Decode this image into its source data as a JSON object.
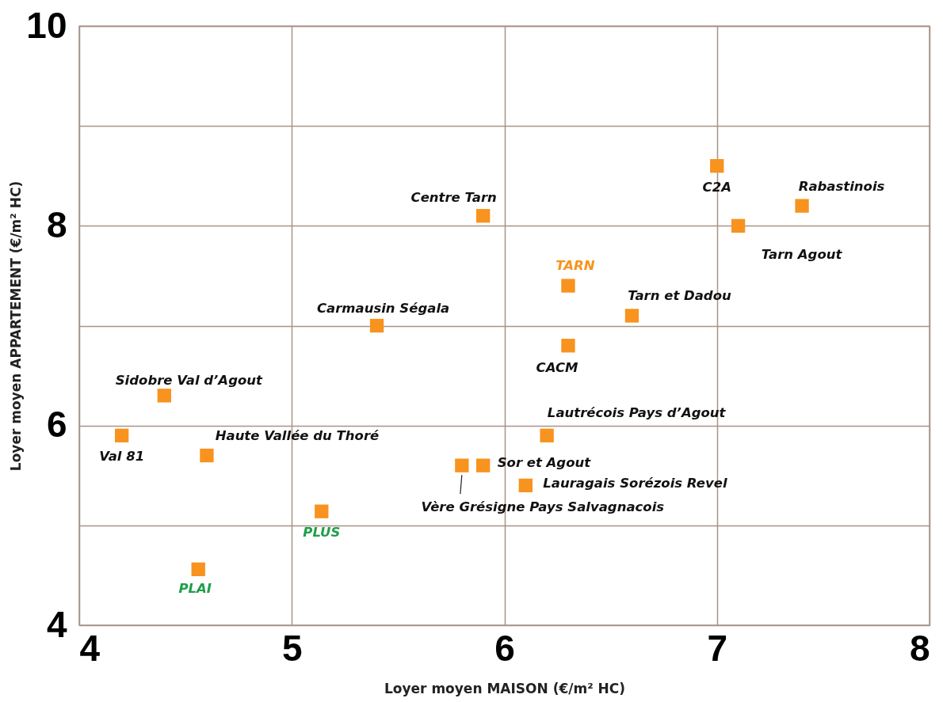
{
  "chart_data": {
    "type": "scatter",
    "xlabel": "Loyer moyen MAISON (€/m² HC)",
    "ylabel": "Loyer moyen APPARTEMENT (€/m² HC)",
    "xlim": [
      4,
      8
    ],
    "xticks": [
      4,
      5,
      6,
      7,
      8
    ],
    "ylim": [
      4,
      10
    ],
    "yticks": [
      4,
      {
        "value": 5,
        "label": null
      },
      6,
      {
        "value": 7,
        "label": null
      },
      8,
      {
        "value": 9,
        "label": null
      },
      10
    ],
    "grid": true,
    "marker": "square",
    "series": [
      {
        "color": "#f7931e",
        "x": [
          7.0,
          7.4,
          7.1,
          5.9,
          6.3,
          6.6,
          5.4,
          6.3,
          4.4,
          4.2,
          4.6,
          6.2,
          5.8,
          5.9,
          6.1,
          5.14,
          4.56
        ],
        "values": [
          8.6,
          8.2,
          8.0,
          8.1,
          7.4,
          7.1,
          7.0,
          6.8,
          6.3,
          5.9,
          5.7,
          5.9,
          5.6,
          5.6,
          5.4,
          5.14,
          4.56
        ]
      }
    ],
    "annotations": [
      {
        "text": "C2A",
        "x": 7.0,
        "y": 8.6
      },
      {
        "text": "Rabastinois",
        "x": 7.4,
        "y": 8.2
      },
      {
        "text": "Tarn Agout",
        "x": 7.1,
        "y": 8.0
      },
      {
        "text": "Centre Tarn",
        "x": 5.9,
        "y": 8.1
      },
      {
        "text": "TARN",
        "x": 6.3,
        "y": 7.4
      },
      {
        "text": "Tarn et Dadou",
        "x": 6.6,
        "y": 7.1
      },
      {
        "text": "Carmausin Ségala",
        "x": 5.4,
        "y": 7.0
      },
      {
        "text": "CACM",
        "x": 6.3,
        "y": 6.8
      },
      {
        "text": "Sidobre Val d’Agout",
        "x": 4.4,
        "y": 6.3
      },
      {
        "text": "Val 81",
        "x": 4.2,
        "y": 5.9
      },
      {
        "text": "Haute Vallée du Thoré",
        "x": 4.6,
        "y": 5.7
      },
      {
        "text": "Lautrécois Pays d’Agout",
        "x": 6.2,
        "y": 5.9
      },
      {
        "text": "Vère Grésigne Pays Salvagnacois",
        "x": 5.8,
        "y": 5.6
      },
      {
        "text": "Sor et Agout",
        "x": 5.9,
        "y": 5.6
      },
      {
        "text": "Lauragais Sorézois Revel",
        "x": 6.1,
        "y": 5.4
      },
      {
        "text": "PLUS",
        "x": 5.14,
        "y": 5.14
      },
      {
        "text": "PLAI",
        "x": 4.56,
        "y": 4.56
      }
    ]
  }
}
